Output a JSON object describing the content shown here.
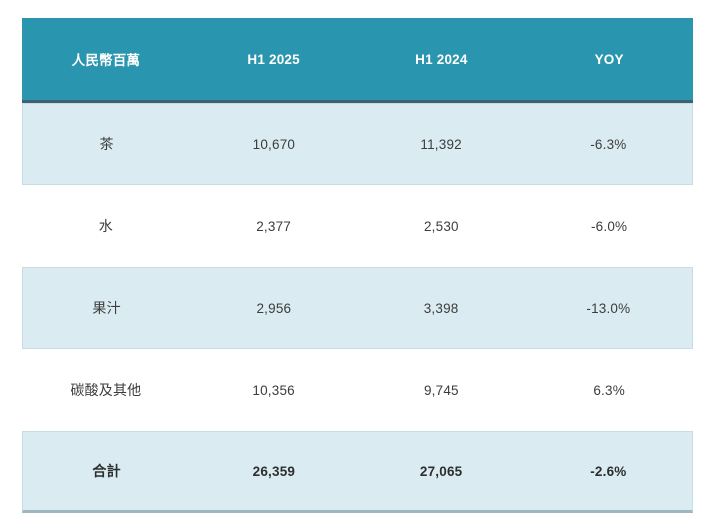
{
  "chart_data": {
    "type": "table",
    "title": "",
    "unit_label": "人民幣百萬",
    "columns": [
      "人民幣百萬",
      "H1 2025",
      "H1 2024",
      "YOY"
    ],
    "rows": [
      {
        "category": "茶",
        "h1_2025": "10,670",
        "h1_2024": "11,392",
        "yoy": "-6.3%"
      },
      {
        "category": "水",
        "h1_2025": "2,377",
        "h1_2024": "2,530",
        "yoy": "-6.0%"
      },
      {
        "category": "果汁",
        "h1_2025": "2,956",
        "h1_2024": "3,398",
        "yoy": "-13.0%"
      },
      {
        "category": "碳酸及其他",
        "h1_2025": "10,356",
        "h1_2024": "9,745",
        "yoy": "6.3%"
      },
      {
        "category": "合計",
        "h1_2025": "26,359",
        "h1_2024": "27,065",
        "yoy": "-2.6%"
      }
    ],
    "numeric": {
      "h1_2025": [
        10670,
        2377,
        2956,
        10356,
        26359
      ],
      "h1_2024": [
        11392,
        2530,
        3398,
        9745,
        27065
      ],
      "yoy_pct": [
        -6.3,
        -6.0,
        -13.0,
        6.3,
        -2.6
      ]
    },
    "colors": {
      "header_bg": "#2a95ae",
      "header_text": "#ffffff",
      "header_border_bottom": "#3d6373",
      "shaded_row_bg": "#daecf2",
      "shaded_row_border": "#c8dce3",
      "total_bottom_border": "#9fb7c1",
      "body_text": "#3c3c3c"
    }
  }
}
